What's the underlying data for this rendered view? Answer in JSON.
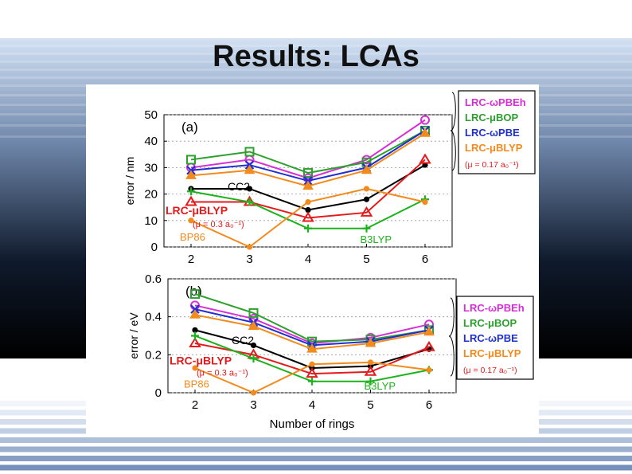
{
  "slide": {
    "title": "Results: LCAs"
  },
  "chart_data": [
    {
      "type": "line",
      "panel_label": "(a)",
      "ylabel": "error / nm",
      "xlabel": "",
      "categories": [
        2,
        3,
        4,
        5,
        6
      ],
      "ylim": [
        0,
        50
      ],
      "yticks": [
        0,
        10,
        20,
        30,
        40,
        50
      ],
      "grid": "dashed horizontal",
      "series": [
        {
          "name": "LRC-ωPBEh",
          "color": "#d62fd6",
          "marker": "circle",
          "values": [
            30,
            33,
            26,
            33,
            48
          ]
        },
        {
          "name": "LRC-μBOP",
          "color": "#2ca02c",
          "marker": "square",
          "values": [
            33,
            36,
            28,
            32,
            44
          ]
        },
        {
          "name": "LRC-ωPBE",
          "color": "#1f2fd0",
          "marker": "x",
          "values": [
            29,
            31,
            25,
            30,
            44
          ]
        },
        {
          "name": "LRC-μBLYP",
          "color": "#f28a1c",
          "marker": "triangle",
          "values": [
            27,
            29,
            23,
            29,
            43
          ]
        },
        {
          "name": "CC2",
          "color": "#000000",
          "marker": "dot",
          "values": [
            22,
            22,
            14,
            18,
            31
          ]
        },
        {
          "name": "LRC-μBLYP",
          "color": "#e41a1c",
          "marker": "triangle-open",
          "values": [
            17,
            17,
            11,
            13,
            33
          ]
        },
        {
          "name": "B3LYP",
          "color": "#1db31d",
          "marker": "plus",
          "values": [
            21,
            17,
            7,
            7,
            18
          ]
        },
        {
          "name": "BP86",
          "color": "#f28a1c",
          "marker": "dot",
          "values": [
            10,
            0,
            17,
            22,
            17
          ]
        }
      ],
      "annotations": {
        "cc2": "CC2",
        "mu_blyp": "LRC-μBLYP",
        "mu_low": "(μ = 0.3 a₀⁻¹)",
        "bp86": "BP86",
        "b3lyp": "B3LYP"
      },
      "legend": {
        "placement": "right",
        "entries": [
          "LRC-ωPBEh",
          "LRC-μBOP",
          "LRC-ωPBE",
          "LRC-μBLYP"
        ],
        "note": "(μ = 0.17 a₀⁻¹)"
      }
    },
    {
      "type": "line",
      "panel_label": "(b)",
      "ylabel": "error / eV",
      "xlabel": "Number of rings",
      "categories": [
        2,
        3,
        4,
        5,
        6
      ],
      "ylim": [
        0,
        0.6
      ],
      "yticks": [
        "0",
        "0.2",
        "0.4",
        "0.6"
      ],
      "grid": "dashed horizontal",
      "series": [
        {
          "name": "LRC-ωPBEh",
          "color": "#d62fd6",
          "marker": "circle",
          "values": [
            0.46,
            0.39,
            0.26,
            0.29,
            0.36
          ]
        },
        {
          "name": "LRC-μBOP",
          "color": "#2ca02c",
          "marker": "square",
          "values": [
            0.52,
            0.42,
            0.27,
            0.28,
            0.33
          ]
        },
        {
          "name": "LRC-ωPBE",
          "color": "#1f2fd0",
          "marker": "x",
          "values": [
            0.44,
            0.37,
            0.25,
            0.27,
            0.33
          ]
        },
        {
          "name": "LRC-μBLYP",
          "color": "#f28a1c",
          "marker": "triangle",
          "values": [
            0.41,
            0.35,
            0.23,
            0.26,
            0.32
          ]
        },
        {
          "name": "CC2",
          "color": "#000000",
          "marker": "dot",
          "values": [
            0.33,
            0.25,
            0.13,
            0.14,
            0.23
          ]
        },
        {
          "name": "LRC-μBLYP",
          "color": "#e41a1c",
          "marker": "triangle-open",
          "values": [
            0.26,
            0.2,
            0.1,
            0.11,
            0.24
          ]
        },
        {
          "name": "B3LYP",
          "color": "#1db31d",
          "marker": "plus",
          "values": [
            0.3,
            0.18,
            0.06,
            0.06,
            0.12
          ]
        },
        {
          "name": "BP86",
          "color": "#f28a1c",
          "marker": "dot",
          "values": [
            0.13,
            0.0,
            0.15,
            0.16,
            0.12
          ]
        }
      ],
      "annotations": {
        "cc2": "CC2",
        "mu_blyp": "LRC-μBLYP",
        "mu_low": "(μ = 0.3 a₀⁻¹)",
        "bp86": "BP86",
        "b3lyp": "B3LYP"
      },
      "legend": {
        "placement": "right",
        "entries": [
          "LRC-ωPBEh",
          "LRC-μBOP",
          "LRC-ωPBE",
          "LRC-μBLYP"
        ],
        "note": "(μ = 0.17 a₀⁻¹)"
      }
    }
  ]
}
